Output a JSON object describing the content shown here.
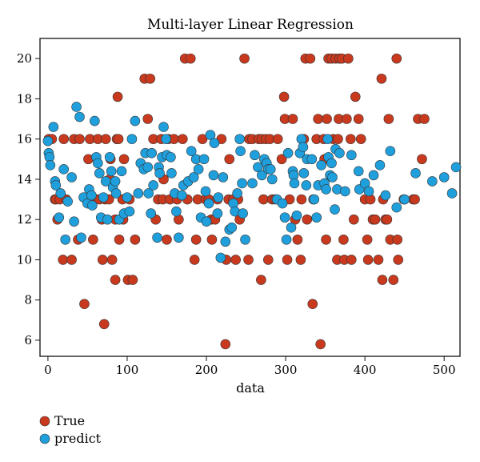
{
  "chart_data": {
    "type": "scatter",
    "title": "Multi-layer Linear Regression",
    "xlabel": "data",
    "ylabel": "",
    "xlim": [
      -10,
      520
    ],
    "ylim": [
      5.2,
      21.0
    ],
    "xticks": [
      0,
      100,
      200,
      300,
      400,
      500
    ],
    "yticks": [
      6,
      8,
      10,
      12,
      14,
      16,
      18,
      20
    ],
    "grid": false,
    "legend_position": "bottom-left",
    "series": [
      {
        "name": "True",
        "color": "#c8391e",
        "points": [
          [
            1,
            16
          ],
          [
            5,
            16
          ],
          [
            9,
            13
          ],
          [
            10,
            13
          ],
          [
            12,
            12
          ],
          [
            15,
            13
          ],
          [
            19,
            10
          ],
          [
            20,
            16
          ],
          [
            23,
            13
          ],
          [
            30,
            10
          ],
          [
            33,
            16
          ],
          [
            38,
            11
          ],
          [
            40,
            16
          ],
          [
            46,
            7.8
          ],
          [
            49,
            13
          ],
          [
            51,
            15
          ],
          [
            53,
            16
          ],
          [
            57,
            11
          ],
          [
            60,
            13
          ],
          [
            63,
            16
          ],
          [
            65,
            13
          ],
          [
            68,
            12
          ],
          [
            69,
            10
          ],
          [
            71,
            6.8
          ],
          [
            72,
            13
          ],
          [
            73,
            16
          ],
          [
            77,
            13
          ],
          [
            78,
            14
          ],
          [
            79,
            15
          ],
          [
            81,
            10
          ],
          [
            85,
            12
          ],
          [
            85,
            9
          ],
          [
            87,
            16
          ],
          [
            88,
            18.1
          ],
          [
            89,
            16
          ],
          [
            90,
            11
          ],
          [
            94,
            13
          ],
          [
            95,
            12
          ],
          [
            96,
            15
          ],
          [
            101,
            9
          ],
          [
            103,
            13
          ],
          [
            107,
            9
          ],
          [
            110,
            11
          ],
          [
            122,
            19
          ],
          [
            126,
            17
          ],
          [
            129,
            19
          ],
          [
            133,
            16
          ],
          [
            136,
            12
          ],
          [
            139,
            13
          ],
          [
            143,
            16
          ],
          [
            145,
            13
          ],
          [
            146,
            14
          ],
          [
            150,
            11
          ],
          [
            152,
            16
          ],
          [
            154,
            13
          ],
          [
            159,
            16
          ],
          [
            163,
            13
          ],
          [
            165,
            12
          ],
          [
            170,
            16
          ],
          [
            173,
            20
          ],
          [
            176,
            13
          ],
          [
            180,
            20
          ],
          [
            185,
            10
          ],
          [
            187,
            11
          ],
          [
            189,
            13
          ],
          [
            195,
            16
          ],
          [
            199,
            13
          ],
          [
            203,
            13
          ],
          [
            206,
            12
          ],
          [
            207,
            11
          ],
          [
            211,
            12
          ],
          [
            214,
            13
          ],
          [
            219,
            16
          ],
          [
            224,
            5.8
          ],
          [
            225,
            10
          ],
          [
            228,
            13
          ],
          [
            229,
            15
          ],
          [
            234,
            13
          ],
          [
            237,
            10
          ],
          [
            240,
            13
          ],
          [
            242,
            12
          ],
          [
            248,
            20
          ],
          [
            253,
            10
          ],
          [
            254,
            16
          ],
          [
            258,
            16
          ],
          [
            266,
            16
          ],
          [
            269,
            9
          ],
          [
            270,
            16
          ],
          [
            272,
            13
          ],
          [
            275,
            16
          ],
          [
            278,
            10
          ],
          [
            280,
            16
          ],
          [
            283,
            13
          ],
          [
            287,
            13
          ],
          [
            290,
            16
          ],
          [
            295,
            15
          ],
          [
            298,
            18.1
          ],
          [
            299,
            17
          ],
          [
            302,
            10
          ],
          [
            305,
            13
          ],
          [
            309,
            17
          ],
          [
            312,
            12
          ],
          [
            315,
            11
          ],
          [
            319,
            10
          ],
          [
            320,
            13
          ],
          [
            323,
            16
          ],
          [
            325,
            20
          ],
          [
            327,
            12
          ],
          [
            331,
            20
          ],
          [
            334,
            7.8
          ],
          [
            335,
            13
          ],
          [
            339,
            16
          ],
          [
            341,
            17
          ],
          [
            344,
            5.8
          ],
          [
            348,
            16
          ],
          [
            349,
            15
          ],
          [
            351,
            11
          ],
          [
            352,
            17
          ],
          [
            354,
            20
          ],
          [
            358,
            20
          ],
          [
            360,
            16
          ],
          [
            363,
            20
          ],
          [
            365,
            10
          ],
          [
            366,
            16
          ],
          [
            367,
            17
          ],
          [
            368,
            20
          ],
          [
            371,
            20
          ],
          [
            373,
            11
          ],
          [
            374,
            10
          ],
          [
            377,
            17
          ],
          [
            379,
            20
          ],
          [
            382,
            16
          ],
          [
            383,
            10
          ],
          [
            386,
            12
          ],
          [
            388,
            18.1
          ],
          [
            392,
            17
          ],
          [
            395,
            16
          ],
          [
            400,
            13
          ],
          [
            403,
            11
          ],
          [
            404,
            10
          ],
          [
            407,
            13
          ],
          [
            410,
            12
          ],
          [
            413,
            12
          ],
          [
            417,
            10
          ],
          [
            421,
            19
          ],
          [
            422,
            9
          ],
          [
            423,
            13
          ],
          [
            426,
            12
          ],
          [
            428,
            12
          ],
          [
            430,
            17
          ],
          [
            432,
            11
          ],
          [
            436,
            9
          ],
          [
            440,
            20
          ],
          [
            441,
            11
          ],
          [
            442,
            10
          ],
          [
            449,
            13
          ],
          [
            461,
            13
          ],
          [
            463,
            13
          ],
          [
            467,
            17
          ],
          [
            472,
            15
          ],
          [
            475,
            17
          ]
        ]
      },
      {
        "name": "predict",
        "color": "#1f9fdc",
        "points": [
          [
            0,
            15.9
          ],
          [
            1,
            15.3
          ],
          [
            2,
            15.1
          ],
          [
            3,
            14.7
          ],
          [
            7,
            16.6
          ],
          [
            9,
            13.9
          ],
          [
            10,
            13.7
          ],
          [
            14,
            12.1
          ],
          [
            16,
            13.3
          ],
          [
            20,
            14.5
          ],
          [
            22,
            11
          ],
          [
            25,
            12.9
          ],
          [
            30,
            14.1
          ],
          [
            33,
            11.9
          ],
          [
            36,
            17.6
          ],
          [
            40,
            17.1
          ],
          [
            42,
            11.1
          ],
          [
            45,
            13.1
          ],
          [
            50,
            12.8
          ],
          [
            52,
            13.5
          ],
          [
            55,
            13.2
          ],
          [
            56,
            12.7
          ],
          [
            59,
            16.9
          ],
          [
            61,
            15.1
          ],
          [
            63,
            14.8
          ],
          [
            65,
            14.3
          ],
          [
            67,
            12.1
          ],
          [
            70,
            13.1
          ],
          [
            73,
            13.9
          ],
          [
            75,
            12
          ],
          [
            78,
            15.1
          ],
          [
            80,
            14.4
          ],
          [
            82,
            13.6
          ],
          [
            85,
            13.9
          ],
          [
            86,
            13.3
          ],
          [
            90,
            12
          ],
          [
            93,
            14.4
          ],
          [
            96,
            12.3
          ],
          [
            100,
            13.1
          ],
          [
            103,
            12.4
          ],
          [
            106,
            16
          ],
          [
            110,
            16.9
          ],
          [
            114,
            13.3
          ],
          [
            117,
            14.8
          ],
          [
            121,
            14.5
          ],
          [
            123,
            15.3
          ],
          [
            126,
            14.6
          ],
          [
            127,
            13.3
          ],
          [
            130,
            12.3
          ],
          [
            131,
            15.3
          ],
          [
            133,
            13.7
          ],
          [
            138,
            11.1
          ],
          [
            140,
            14.6
          ],
          [
            141,
            14.3
          ],
          [
            144,
            15.1
          ],
          [
            146,
            16.6
          ],
          [
            149,
            16
          ],
          [
            150,
            15.2
          ],
          [
            155,
            15.1
          ],
          [
            156,
            14.3
          ],
          [
            160,
            13.3
          ],
          [
            162,
            12.4
          ],
          [
            165,
            11.1
          ],
          [
            169,
            13.2
          ],
          [
            171,
            13.7
          ],
          [
            177,
            13.9
          ],
          [
            181,
            15.4
          ],
          [
            184,
            14.1
          ],
          [
            187,
            15
          ],
          [
            190,
            14.5
          ],
          [
            193,
            12.1
          ],
          [
            197,
            15
          ],
          [
            199,
            13.4
          ],
          [
            200,
            11.9
          ],
          [
            203,
            12.8
          ],
          [
            205,
            16.2
          ],
          [
            209,
            14.2
          ],
          [
            210,
            15.8
          ],
          [
            214,
            12.3
          ],
          [
            215,
            13.1
          ],
          [
            218,
            10.1
          ],
          [
            221,
            14.1
          ],
          [
            224,
            10.9
          ],
          [
            229,
            11.5
          ],
          [
            232,
            11.6
          ],
          [
            234,
            12.8
          ],
          [
            236,
            12.4
          ],
          [
            239,
            13.3
          ],
          [
            242,
            16
          ],
          [
            243,
            15.4
          ],
          [
            245,
            13.8
          ],
          [
            246,
            12.3
          ],
          [
            249,
            11
          ],
          [
            258,
            13.8
          ],
          [
            261,
            15.2
          ],
          [
            265,
            14.6
          ],
          [
            270,
            14.2
          ],
          [
            273,
            15
          ],
          [
            276,
            14.8
          ],
          [
            278,
            14.5
          ],
          [
            281,
            14.5
          ],
          [
            283,
            14
          ],
          [
            289,
            13
          ],
          [
            296,
            12.8
          ],
          [
            299,
            12.1
          ],
          [
            301,
            11
          ],
          [
            303,
            15.3
          ],
          [
            307,
            11.6
          ],
          [
            309,
            14.4
          ],
          [
            310,
            14.2
          ],
          [
            311,
            13.8
          ],
          [
            314,
            12.2
          ],
          [
            318,
            15.3
          ],
          [
            320,
            16
          ],
          [
            322,
            15.6
          ],
          [
            323,
            14.3
          ],
          [
            326,
            13.7
          ],
          [
            327,
            15
          ],
          [
            333,
            15
          ],
          [
            336,
            13
          ],
          [
            339,
            12.1
          ],
          [
            341,
            13.7
          ],
          [
            345,
            14.7
          ],
          [
            349,
            13.8
          ],
          [
            351,
            13.5
          ],
          [
            353,
            16
          ],
          [
            354,
            15.1
          ],
          [
            356,
            14.2
          ],
          [
            358,
            14.8
          ],
          [
            359,
            14.1
          ],
          [
            362,
            12.5
          ],
          [
            363,
            15.5
          ],
          [
            365,
            13.5
          ],
          [
            368,
            15.3
          ],
          [
            375,
            13.4
          ],
          [
            383,
            15.2
          ],
          [
            392,
            14.4
          ],
          [
            393,
            13.5
          ],
          [
            400,
            13.8
          ],
          [
            405,
            13.4
          ],
          [
            411,
            14.2
          ],
          [
            419,
            14.7
          ],
          [
            426,
            13.2
          ],
          [
            432,
            15.4
          ],
          [
            440,
            12.6
          ],
          [
            450,
            13
          ],
          [
            464,
            14.3
          ],
          [
            485,
            13.9
          ],
          [
            500,
            14.1
          ],
          [
            510,
            13.3
          ],
          [
            515,
            14.6
          ]
        ]
      }
    ]
  }
}
